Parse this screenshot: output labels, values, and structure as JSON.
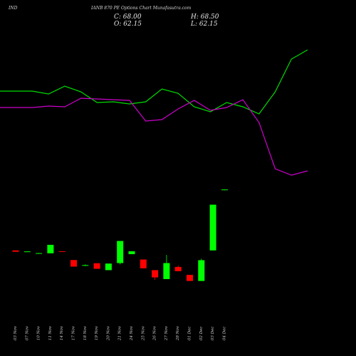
{
  "header": {
    "symbol": "IND",
    "title": "IANB 870 PE Options Chart Munafasutra.com"
  },
  "ohlc": {
    "c": "C: 68.00",
    "h": "H: 68.50",
    "o": "O: 62.15",
    "l": "L: 62.15"
  },
  "colors": {
    "background": "#000000",
    "up": "#00ff00",
    "down": "#ff0000",
    "line_green": "#00dd00",
    "line_magenta": "#cc00cc"
  },
  "chart_data": [
    {
      "type": "line",
      "series": [
        {
          "color": "#00dd00",
          "values": [
            58,
            58,
            58,
            62,
            51,
            59,
            74,
            73,
            76,
            73,
            55,
            61,
            80,
            87,
            74,
            80,
            90,
            59,
            13,
            0
          ]
        },
        {
          "color": "#cc00cc",
          "values": [
            81,
            81,
            81,
            79,
            80,
            68,
            69,
            70,
            71,
            100,
            98,
            83,
            71,
            85,
            81,
            70,
            102,
            167,
            176,
            170
          ]
        }
      ]
    },
    {
      "type": "candlestick",
      "categories": [
        "03 Nov",
        "07 Nov",
        "10 Nov",
        "11 Nov",
        "14 Nov",
        "17 Nov",
        "18 Nov",
        "19 Nov",
        "20 Nov",
        "21 Nov",
        "24 Nov",
        "25 Nov",
        "26 Nov",
        "27 Nov",
        "28 Nov",
        "01 Dec",
        "02 Dec",
        "03 Dec",
        "04 Dec"
      ],
      "candles": [
        {
          "open": 7.3,
          "high": 7.3,
          "low": 6.5,
          "close": 6.5
        },
        {
          "open": 6.7,
          "high": 6.8,
          "low": 6.6,
          "close": 6.7
        },
        {
          "open": 5.7,
          "high": 5.8,
          "low": 5.6,
          "close": 5.7
        },
        {
          "open": 5.6,
          "high": 10.6,
          "low": 5.6,
          "close": 10.6
        },
        {
          "open": 6.8,
          "high": 6.8,
          "low": 6.4,
          "close": 6.4
        },
        {
          "open": 1.6,
          "high": 1.6,
          "low": -2.3,
          "close": -2.3
        },
        {
          "open": -1.4,
          "high": -1.0,
          "low": -2.0,
          "close": -1.4
        },
        {
          "open": -0.3,
          "high": -0.3,
          "low": -3.6,
          "close": -3.6
        },
        {
          "open": -4.4,
          "high": -0.5,
          "low": -4.4,
          "close": -0.5
        },
        {
          "open": -0.2,
          "high": 12.9,
          "low": -1.0,
          "close": 12.9
        },
        {
          "open": 5.1,
          "high": 6.8,
          "low": 5.1,
          "close": 6.8
        },
        {
          "open": 1.9,
          "high": 1.9,
          "low": -3.3,
          "close": -3.3
        },
        {
          "open": -4.4,
          "high": -4.4,
          "low": -10.2,
          "close": -8.7
        },
        {
          "open": -9.7,
          "high": 4.6,
          "low": -9.7,
          "close": -0.2
        },
        {
          "open": -2.5,
          "high": -1.6,
          "low": -5.0,
          "close": -5.0
        },
        {
          "open": -7.2,
          "high": -7.2,
          "low": -10.8,
          "close": -10.8
        },
        {
          "open": -10.8,
          "high": 2.4,
          "low": -10.8,
          "close": 1.5
        },
        {
          "open": 7.3,
          "high": 34.4,
          "low": 7.3,
          "close": 34.4
        },
        {
          "open": 43.0,
          "high": 43.4,
          "low": 43.0,
          "close": 43.4
        }
      ]
    }
  ]
}
